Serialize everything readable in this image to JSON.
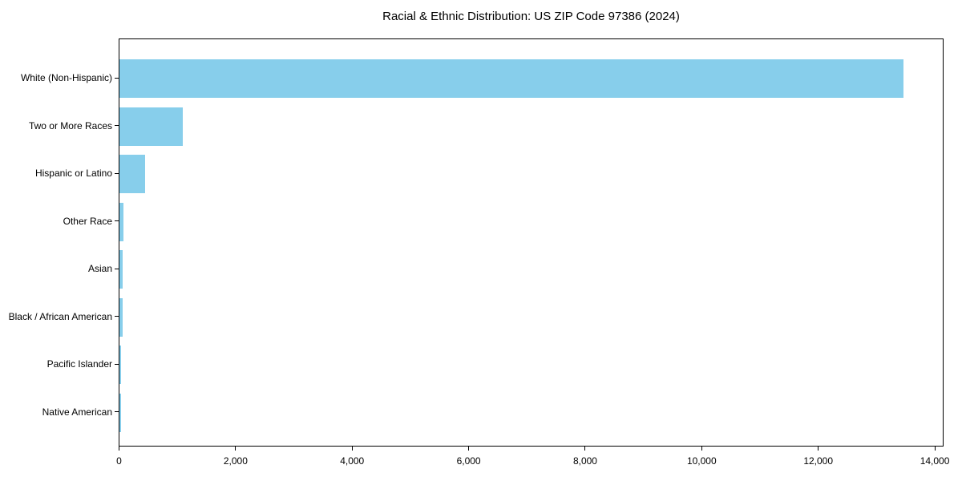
{
  "chart_data": {
    "type": "bar",
    "orientation": "horizontal",
    "title": "Racial & Ethnic Distribution: US ZIP Code 97386 (2024)",
    "categories": [
      "White (Non-Hispanic)",
      "Two or More Races",
      "Hispanic or Latino",
      "Other Race",
      "Asian",
      "Black / African American",
      "Pacific Islander",
      "Native American"
    ],
    "values": [
      13450,
      1085,
      445,
      68,
      60,
      50,
      30,
      28
    ],
    "bar_color": "#87CEEB",
    "axis_color": "#000000",
    "background_color": "#ffffff",
    "xlabel": "",
    "ylabel": "",
    "xlim": [
      0,
      14130
    ],
    "x_ticks": [
      0,
      2000,
      4000,
      6000,
      8000,
      10000,
      12000,
      14000
    ],
    "x_tick_labels": [
      "0",
      "2,000",
      "4,000",
      "6,000",
      "8,000",
      "10,000",
      "12,000",
      "14,000"
    ],
    "grid": false,
    "legend": "none"
  }
}
